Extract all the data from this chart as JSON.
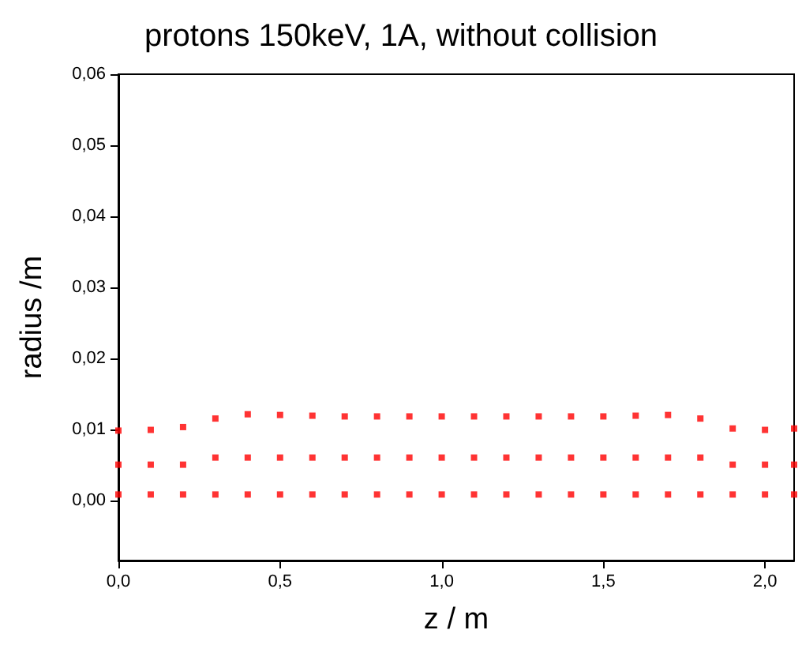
{
  "chart_data": {
    "type": "scatter",
    "title": "protons 150keV, 1A, without collision",
    "xlabel": "z / m",
    "ylabel": "radius /m",
    "marker": "square",
    "grid": false,
    "xlim": [
      0,
      2.09
    ],
    "ylim": [
      -0.0085,
      0.06
    ],
    "xticks": [
      {
        "value": 0,
        "label": "0,0"
      },
      {
        "value": 0.5,
        "label": "0,5"
      },
      {
        "value": 1,
        "label": "1,0"
      },
      {
        "value": 1.5,
        "label": "1,5"
      },
      {
        "value": 2,
        "label": "2,0"
      }
    ],
    "yticks": [
      {
        "value": 0,
        "label": "0,00"
      },
      {
        "value": 0.01,
        "label": "0,01"
      },
      {
        "value": 0.02,
        "label": "0,02"
      },
      {
        "value": 0.03,
        "label": "0,03"
      },
      {
        "value": 0.04,
        "label": "0,04"
      },
      {
        "value": 0.05,
        "label": "0,05"
      },
      {
        "value": 0.06,
        "label": "0,06"
      }
    ],
    "series": [
      {
        "color": "#ff0000",
        "x": [
          0,
          0.1,
          0.2,
          0.3,
          0.4,
          0.5,
          0.6,
          0.7,
          0.8,
          0.9,
          1.0,
          1.1,
          1.2,
          1.3,
          1.4,
          1.5,
          1.6,
          1.7,
          1.8,
          1.9,
          2.0,
          2.09
        ],
        "values": [
          0.0098,
          0.0099,
          0.0103,
          0.0115,
          0.0121,
          0.012,
          0.0119,
          0.0118,
          0.0118,
          0.0118,
          0.0118,
          0.0118,
          0.0118,
          0.0118,
          0.0118,
          0.0118,
          0.0119,
          0.012,
          0.0115,
          0.0101,
          0.0099,
          0.0101
        ]
      },
      {
        "color": "#ff0000",
        "x": [
          0,
          0.1,
          0.2,
          0.3,
          0.4,
          0.5,
          0.6,
          0.7,
          0.8,
          0.9,
          1.0,
          1.1,
          1.2,
          1.3,
          1.4,
          1.5,
          1.6,
          1.7,
          1.8,
          1.9,
          2.0,
          2.09
        ],
        "values": [
          0.005,
          0.005,
          0.005,
          0.006,
          0.006,
          0.006,
          0.006,
          0.006,
          0.006,
          0.006,
          0.006,
          0.006,
          0.006,
          0.006,
          0.006,
          0.006,
          0.006,
          0.006,
          0.006,
          0.005,
          0.005,
          0.005
        ]
      },
      {
        "color": "#ff0000",
        "x": [
          0,
          0.1,
          0.2,
          0.3,
          0.4,
          0.5,
          0.6,
          0.7,
          0.8,
          0.9,
          1.0,
          1.1,
          1.2,
          1.3,
          1.4,
          1.5,
          1.6,
          1.7,
          1.8,
          1.9,
          2.0,
          2.09
        ],
        "values": [
          0.0008,
          0.0008,
          0.0008,
          0.0008,
          0.0008,
          0.0008,
          0.0008,
          0.0008,
          0.0008,
          0.0008,
          0.0008,
          0.0008,
          0.0008,
          0.0008,
          0.0008,
          0.0008,
          0.0008,
          0.0008,
          0.0008,
          0.0008,
          0.0008,
          0.0008
        ]
      }
    ]
  }
}
